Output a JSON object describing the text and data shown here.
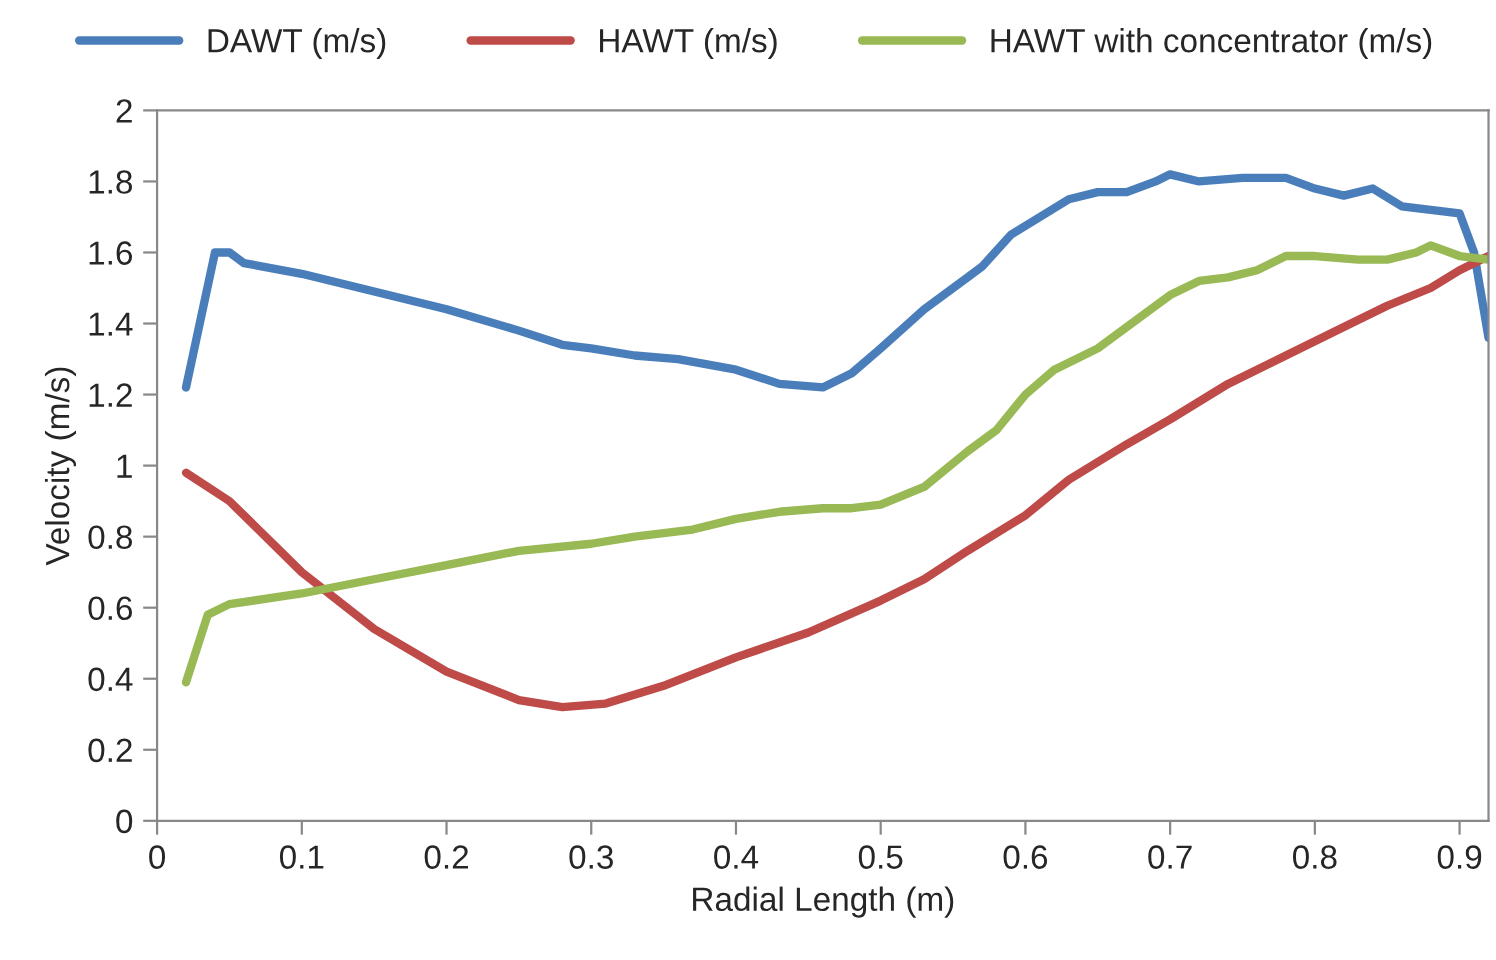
{
  "chart_data": {
    "type": "line",
    "xlabel": "Radial Length (m)",
    "ylabel": "Velocity (m/s)",
    "xlim": [
      0,
      0.92
    ],
    "xticks": [
      0,
      0.1,
      0.2,
      0.3,
      0.4,
      0.5,
      0.6,
      0.7,
      0.8,
      0.9
    ],
    "ylim": [
      0,
      2
    ],
    "yticks": [
      0,
      0.2,
      0.4,
      0.6,
      0.8,
      1,
      1.2,
      1.4,
      1.6,
      1.8,
      2
    ],
    "grid": false,
    "legend": "top",
    "marker": "none",
    "line_style": "solid",
    "series": [
      {
        "name": "DAWT (m/s)",
        "color": "#4a7ebb",
        "x": [
          0.02,
          0.04,
          0.05,
          0.06,
          0.1,
          0.15,
          0.2,
          0.25,
          0.28,
          0.3,
          0.33,
          0.36,
          0.4,
          0.43,
          0.46,
          0.48,
          0.5,
          0.53,
          0.56,
          0.57,
          0.59,
          0.61,
          0.63,
          0.65,
          0.67,
          0.69,
          0.7,
          0.72,
          0.75,
          0.78,
          0.8,
          0.82,
          0.84,
          0.86,
          0.88,
          0.9,
          0.91,
          0.92
        ],
        "values": [
          1.22,
          1.6,
          1.6,
          1.57,
          1.54,
          1.49,
          1.44,
          1.38,
          1.34,
          1.33,
          1.31,
          1.3,
          1.27,
          1.23,
          1.22,
          1.26,
          1.33,
          1.44,
          1.53,
          1.56,
          1.65,
          1.7,
          1.75,
          1.77,
          1.77,
          1.8,
          1.82,
          1.8,
          1.81,
          1.81,
          1.78,
          1.76,
          1.78,
          1.73,
          1.72,
          1.71,
          1.6,
          1.36
        ]
      },
      {
        "name": "HAWT (m/s)",
        "color": "#be4b48",
        "x": [
          0.02,
          0.05,
          0.08,
          0.1,
          0.15,
          0.2,
          0.25,
          0.28,
          0.31,
          0.35,
          0.4,
          0.45,
          0.5,
          0.53,
          0.56,
          0.6,
          0.63,
          0.67,
          0.7,
          0.74,
          0.78,
          0.82,
          0.85,
          0.88,
          0.9,
          0.92
        ],
        "values": [
          0.98,
          0.9,
          0.78,
          0.7,
          0.54,
          0.42,
          0.34,
          0.32,
          0.33,
          0.38,
          0.46,
          0.53,
          0.62,
          0.68,
          0.76,
          0.86,
          0.96,
          1.06,
          1.13,
          1.23,
          1.31,
          1.39,
          1.45,
          1.5,
          1.55,
          1.59
        ]
      },
      {
        "name": "HAWT with concentrator (m/s)",
        "color": "#98b954",
        "x": [
          0.02,
          0.035,
          0.05,
          0.1,
          0.15,
          0.2,
          0.25,
          0.3,
          0.33,
          0.37,
          0.4,
          0.43,
          0.46,
          0.48,
          0.5,
          0.53,
          0.56,
          0.58,
          0.6,
          0.62,
          0.65,
          0.68,
          0.7,
          0.72,
          0.74,
          0.76,
          0.78,
          0.8,
          0.83,
          0.85,
          0.87,
          0.88,
          0.9,
          0.92
        ],
        "values": [
          0.39,
          0.58,
          0.61,
          0.64,
          0.68,
          0.72,
          0.76,
          0.78,
          0.8,
          0.82,
          0.85,
          0.87,
          0.88,
          0.88,
          0.89,
          0.94,
          1.04,
          1.1,
          1.2,
          1.27,
          1.33,
          1.42,
          1.48,
          1.52,
          1.53,
          1.55,
          1.59,
          1.59,
          1.58,
          1.58,
          1.6,
          1.62,
          1.59,
          1.58
        ]
      }
    ]
  }
}
